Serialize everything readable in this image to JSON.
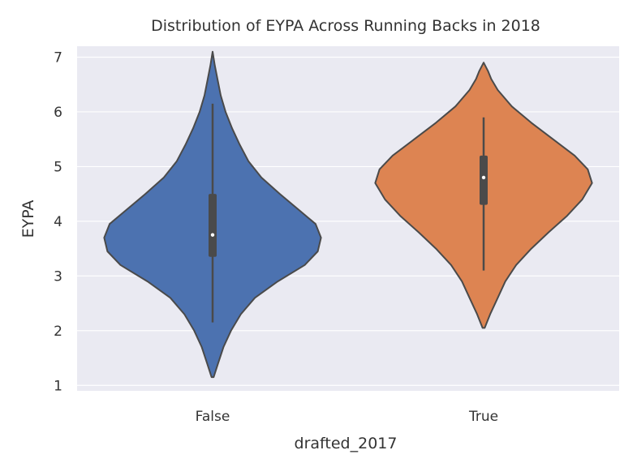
{
  "chart_data": {
    "type": "violin",
    "title": "Distribution of EYPA Across Running Backs in 2018",
    "xlabel": "drafted_2017",
    "ylabel": "EYPA",
    "categories": [
      "False",
      "True"
    ],
    "ylim": [
      0.9,
      7.2
    ],
    "yticks": [
      1,
      2,
      3,
      4,
      5,
      6,
      7
    ],
    "grid": true,
    "colors": {
      "background": "#eaeaf2",
      "grid": "#ffffff",
      "outline": "#4a4a4a",
      "inner": "#4a4a4a",
      "median": "#ffffff"
    },
    "series": [
      {
        "name": "False",
        "color": "#4c72b0",
        "whisker_low": 2.15,
        "q1": 3.35,
        "median": 3.75,
        "q3": 4.5,
        "whisker_high": 6.15,
        "density": [
          [
            1.15,
            0.01
          ],
          [
            1.4,
            0.05
          ],
          [
            1.7,
            0.1
          ],
          [
            2.0,
            0.17
          ],
          [
            2.3,
            0.26
          ],
          [
            2.6,
            0.39
          ],
          [
            2.9,
            0.6
          ],
          [
            3.2,
            0.85
          ],
          [
            3.45,
            0.97
          ],
          [
            3.7,
            1.0
          ],
          [
            3.95,
            0.95
          ],
          [
            4.2,
            0.8
          ],
          [
            4.5,
            0.62
          ],
          [
            4.8,
            0.45
          ],
          [
            5.1,
            0.33
          ],
          [
            5.4,
            0.25
          ],
          [
            5.7,
            0.18
          ],
          [
            6.0,
            0.12
          ],
          [
            6.3,
            0.075
          ],
          [
            6.6,
            0.045
          ],
          [
            6.85,
            0.02
          ],
          [
            7.1,
            0.0
          ]
        ]
      },
      {
        "name": "True",
        "color": "#dd8452",
        "whisker_low": 3.1,
        "q1": 4.3,
        "median": 4.8,
        "q3": 5.2,
        "whisker_high": 5.9,
        "density": [
          [
            2.05,
            0.01
          ],
          [
            2.3,
            0.06
          ],
          [
            2.6,
            0.13
          ],
          [
            2.9,
            0.2
          ],
          [
            3.2,
            0.3
          ],
          [
            3.5,
            0.44
          ],
          [
            3.8,
            0.6
          ],
          [
            4.1,
            0.77
          ],
          [
            4.4,
            0.91
          ],
          [
            4.7,
            1.0
          ],
          [
            4.95,
            0.96
          ],
          [
            5.2,
            0.84
          ],
          [
            5.5,
            0.64
          ],
          [
            5.8,
            0.44
          ],
          [
            6.1,
            0.26
          ],
          [
            6.4,
            0.13
          ],
          [
            6.6,
            0.07
          ],
          [
            6.75,
            0.04
          ],
          [
            6.9,
            0.0
          ]
        ]
      }
    ]
  }
}
